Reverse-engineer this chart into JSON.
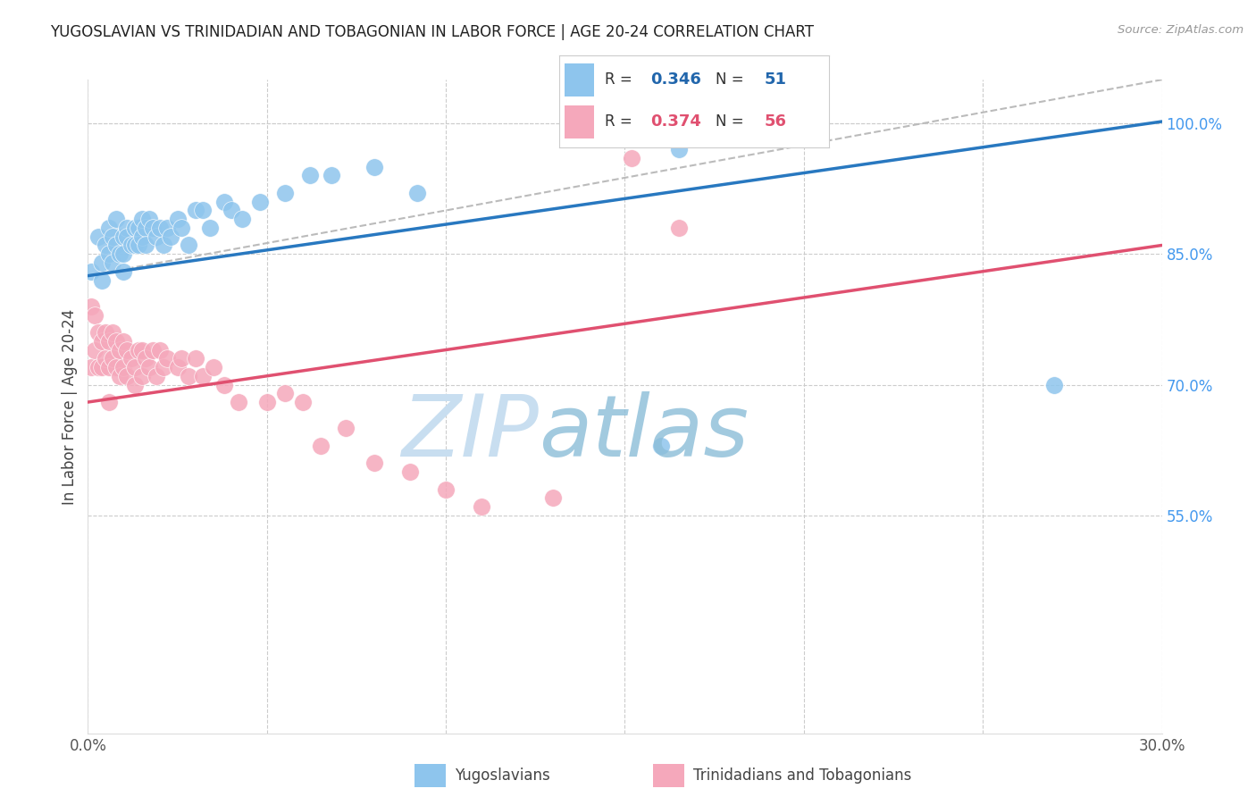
{
  "title": "YUGOSLAVIAN VS TRINIDADIAN AND TOBAGONIAN IN LABOR FORCE | AGE 20-24 CORRELATION CHART",
  "source": "Source: ZipAtlas.com",
  "ylabel": "In Labor Force | Age 20-24",
  "xlim": [
    0.0,
    0.3
  ],
  "ylim": [
    0.3,
    1.05
  ],
  "yticks_right": [
    0.55,
    0.7,
    0.85,
    1.0
  ],
  "yticklabels_right": [
    "55.0%",
    "70.0%",
    "85.0%",
    "100.0%"
  ],
  "blue_R": "0.346",
  "blue_N": "51",
  "pink_R": "0.374",
  "pink_N": "56",
  "blue_color": "#8EC5ED",
  "pink_color": "#F5A8BB",
  "blue_line_color": "#2878C0",
  "pink_line_color": "#E05070",
  "grid_color": "#CCCCCC",
  "background_color": "#FFFFFF",
  "legend_labels": [
    "Yugoslavians",
    "Trinidadians and Tobagonians"
  ],
  "blue_scatter_x": [
    0.001,
    0.003,
    0.004,
    0.004,
    0.005,
    0.006,
    0.006,
    0.007,
    0.007,
    0.008,
    0.008,
    0.009,
    0.01,
    0.01,
    0.01,
    0.011,
    0.011,
    0.012,
    0.013,
    0.013,
    0.014,
    0.014,
    0.015,
    0.015,
    0.016,
    0.016,
    0.017,
    0.018,
    0.019,
    0.02,
    0.021,
    0.022,
    0.023,
    0.025,
    0.026,
    0.028,
    0.03,
    0.032,
    0.034,
    0.038,
    0.04,
    0.043,
    0.048,
    0.055,
    0.062,
    0.068,
    0.08,
    0.092,
    0.16,
    0.165,
    0.27
  ],
  "blue_scatter_y": [
    0.83,
    0.87,
    0.84,
    0.82,
    0.86,
    0.85,
    0.88,
    0.84,
    0.87,
    0.86,
    0.89,
    0.85,
    0.87,
    0.85,
    0.83,
    0.88,
    0.87,
    0.86,
    0.88,
    0.86,
    0.88,
    0.86,
    0.89,
    0.87,
    0.88,
    0.86,
    0.89,
    0.88,
    0.87,
    0.88,
    0.86,
    0.88,
    0.87,
    0.89,
    0.88,
    0.86,
    0.9,
    0.9,
    0.88,
    0.91,
    0.9,
    0.89,
    0.91,
    0.92,
    0.94,
    0.94,
    0.95,
    0.92,
    0.63,
    0.97,
    0.7
  ],
  "pink_scatter_x": [
    0.001,
    0.001,
    0.002,
    0.002,
    0.003,
    0.003,
    0.004,
    0.004,
    0.005,
    0.005,
    0.006,
    0.006,
    0.006,
    0.007,
    0.007,
    0.008,
    0.008,
    0.009,
    0.009,
    0.01,
    0.01,
    0.011,
    0.011,
    0.012,
    0.013,
    0.013,
    0.014,
    0.015,
    0.015,
    0.016,
    0.017,
    0.018,
    0.019,
    0.02,
    0.021,
    0.022,
    0.025,
    0.026,
    0.028,
    0.03,
    0.032,
    0.035,
    0.038,
    0.042,
    0.05,
    0.055,
    0.06,
    0.065,
    0.072,
    0.08,
    0.09,
    0.1,
    0.11,
    0.13,
    0.152,
    0.165
  ],
  "pink_scatter_y": [
    0.79,
    0.72,
    0.78,
    0.74,
    0.76,
    0.72,
    0.75,
    0.72,
    0.76,
    0.73,
    0.75,
    0.72,
    0.68,
    0.76,
    0.73,
    0.75,
    0.72,
    0.74,
    0.71,
    0.75,
    0.72,
    0.74,
    0.71,
    0.73,
    0.72,
    0.7,
    0.74,
    0.74,
    0.71,
    0.73,
    0.72,
    0.74,
    0.71,
    0.74,
    0.72,
    0.73,
    0.72,
    0.73,
    0.71,
    0.73,
    0.71,
    0.72,
    0.7,
    0.68,
    0.68,
    0.69,
    0.68,
    0.63,
    0.65,
    0.61,
    0.6,
    0.58,
    0.56,
    0.57,
    0.96,
    0.88
  ],
  "blue_line_x": [
    0.0,
    0.3
  ],
  "blue_line_y": [
    0.825,
    1.002
  ],
  "pink_line_x": [
    0.0,
    0.3
  ],
  "pink_line_y": [
    0.68,
    0.86
  ],
  "dash_line_x": [
    0.0,
    0.3
  ],
  "dash_line_y": [
    0.825,
    1.05
  ]
}
